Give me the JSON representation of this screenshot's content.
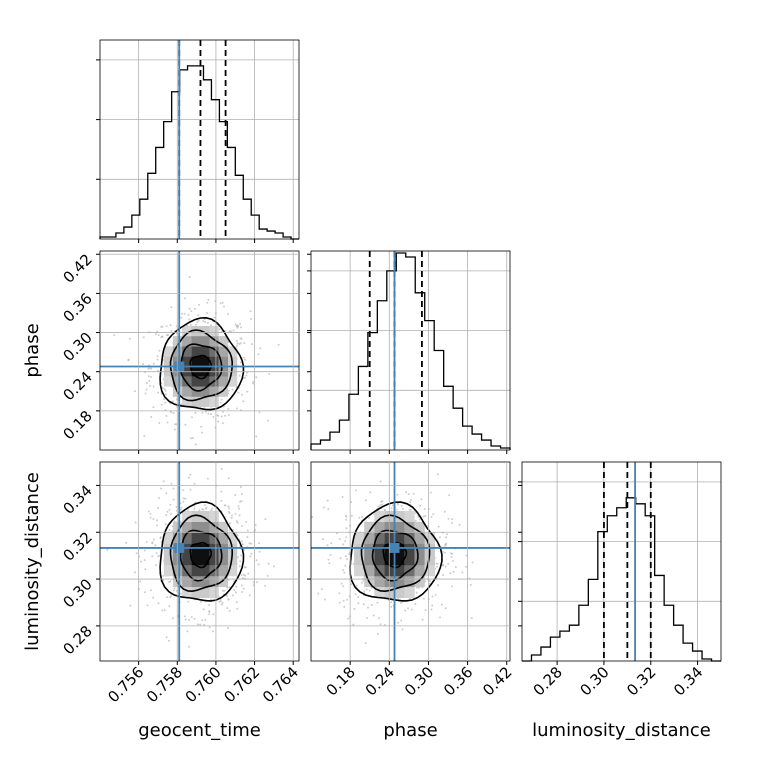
{
  "chart_data": {
    "type": "corner",
    "parameters": [
      {
        "name": "geocent_time",
        "label": "geocent_time",
        "range": [
          0.754,
          0.7643
        ],
        "ticks": [
          "0.756",
          "0.758",
          "0.760",
          "0.762",
          "0.764"
        ],
        "quantiles": [
          0.7581,
          0.7592,
          0.7605
        ],
        "truth": 0.7581
      },
      {
        "name": "phase",
        "label": "phase",
        "range": [
          0.12,
          0.425
        ],
        "ticks": [
          "0.18",
          "0.24",
          "0.30",
          "0.36",
          "0.42"
        ],
        "quantiles": [
          0.21,
          0.248,
          0.29
        ],
        "truth": 0.248
      },
      {
        "name": "luminosity_distance",
        "label": "luminosity_distance",
        "range": [
          0.265,
          0.35
        ],
        "ticks": [
          "0.28",
          "0.30",
          "0.32",
          "0.34"
        ],
        "quantiles": [
          0.3,
          0.31,
          0.32
        ],
        "truth": 0.3133
      }
    ],
    "histograms": {
      "geocent_time": [
        0.01,
        0.01,
        0.03,
        0.06,
        0.12,
        0.2,
        0.33,
        0.46,
        0.59,
        0.74,
        0.85,
        0.87,
        0.87,
        0.8,
        0.7,
        0.59,
        0.46,
        0.32,
        0.2,
        0.12,
        0.05,
        0.04,
        0.03,
        0.01,
        0.0
      ],
      "phase": [
        0.03,
        0.05,
        0.09,
        0.15,
        0.28,
        0.42,
        0.59,
        0.75,
        0.9,
        0.99,
        0.97,
        0.79,
        0.65,
        0.5,
        0.32,
        0.21,
        0.12,
        0.08,
        0.05,
        0.02,
        0.01
      ],
      "luminosity_distance": [
        0.0,
        0.03,
        0.07,
        0.12,
        0.15,
        0.18,
        0.28,
        0.41,
        0.65,
        0.73,
        0.77,
        0.82,
        0.79,
        0.73,
        0.43,
        0.28,
        0.18,
        0.09,
        0.05,
        0.01,
        0.0
      ]
    },
    "centers": {
      "geocent_time": 0.7592,
      "phase": 0.248,
      "luminosity_distance": 0.3105
    },
    "sigmas": {
      "geocent_time": 0.00095,
      "phase": 0.031,
      "luminosity_distance": 0.0093
    },
    "contour_levels_sigma": [
      0.5,
      1.0,
      1.5,
      2.0
    ],
    "colors": {
      "truth": "#4682b4",
      "hist": "#000000",
      "grid": "#b0b0b0",
      "points": "#b8b8b8"
    },
    "grid": true
  }
}
